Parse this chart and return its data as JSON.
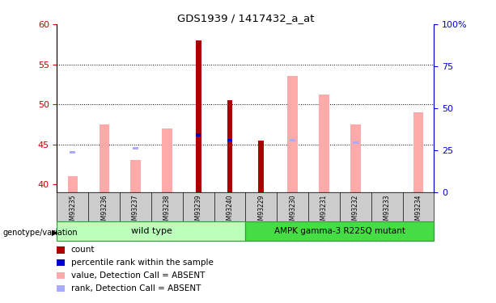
{
  "title": "GDS1939 / 1417432_a_at",
  "samples": [
    "GSM93235",
    "GSM93236",
    "GSM93237",
    "GSM93238",
    "GSM93239",
    "GSM93240",
    "GSM93229",
    "GSM93230",
    "GSM93231",
    "GSM93232",
    "GSM93233",
    "GSM93234"
  ],
  "count_values": [
    null,
    null,
    null,
    null,
    58.0,
    50.5,
    45.5,
    null,
    null,
    null,
    null,
    null
  ],
  "percentile_values": [
    null,
    null,
    null,
    null,
    46.2,
    45.5,
    null,
    null,
    null,
    null,
    null,
    null
  ],
  "pink_bar_values": [
    41.0,
    47.5,
    43.0,
    47.0,
    null,
    null,
    null,
    53.5,
    51.2,
    47.5,
    null,
    49.0
  ],
  "blue_bar_values": [
    44.0,
    null,
    44.5,
    null,
    null,
    null,
    null,
    45.5,
    null,
    45.2,
    null,
    null
  ],
  "ylim_left": [
    39,
    60
  ],
  "ylim_right": [
    0,
    100
  ],
  "left_ticks": [
    40,
    45,
    50,
    55,
    60
  ],
  "right_ticks": [
    0,
    25,
    50,
    75,
    100
  ],
  "right_tick_labels": [
    "0",
    "25",
    "50",
    "75",
    "100%"
  ],
  "hline_values": [
    45,
    50,
    55
  ],
  "count_color": "#aa0000",
  "percentile_color": "#0000cc",
  "pink_color": "#ffaaaa",
  "blue_color": "#aaaaff",
  "group1_color": "#bbffbb",
  "group2_color": "#44dd44",
  "left_axis_color": "#cc0000",
  "right_axis_color": "#0000cc",
  "group1_label": "wild type",
  "group2_label": "AMPK gamma-3 R225Q mutant",
  "genotype_label": "genotype/variation",
  "legend_items": [
    {
      "label": "count",
      "color": "#aa0000"
    },
    {
      "label": "percentile rank within the sample",
      "color": "#0000cc"
    },
    {
      "label": "value, Detection Call = ABSENT",
      "color": "#ffaaaa"
    },
    {
      "label": "rank, Detection Call = ABSENT",
      "color": "#aaaaff"
    }
  ]
}
